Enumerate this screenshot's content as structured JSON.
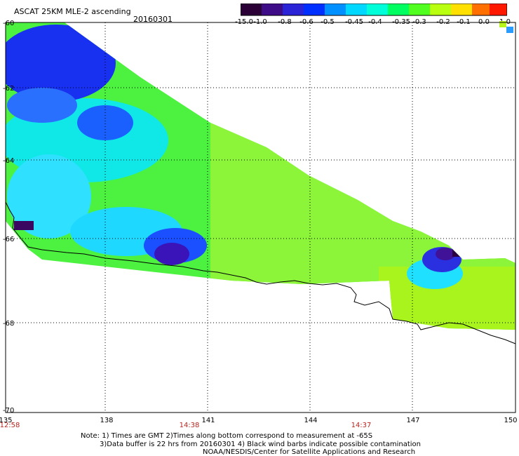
{
  "header": {
    "title": "ASCAT 25KM MLE-2 ascending",
    "date": "20160301"
  },
  "colorbar": {
    "labels": [
      "-15.0",
      "-1.0",
      "-0.8",
      "-0.6",
      "-0.5",
      "-0.45",
      "-0.4",
      "-0.35",
      "-0.3",
      "-0.2",
      "-0.1",
      "0.0",
      "1.0"
    ],
    "colors": [
      "#2b0033",
      "#4a0a7a",
      "#3a22c8",
      "#0018ff",
      "#0070ff",
      "#00b8ff",
      "#00f0ff",
      "#00ff90",
      "#40ff30",
      "#a8ff20",
      "#ffe800",
      "#ff8000",
      "#ff0000"
    ]
  },
  "map": {
    "latitudes": [
      "-60",
      "-62",
      "-64",
      "-66",
      "-68",
      "-70"
    ],
    "longitudes": [
      "135",
      "138",
      "141",
      "144",
      "147",
      "150"
    ],
    "times": [
      "12:58",
      "14:38",
      "14:37"
    ]
  },
  "notes": {
    "line1": "Note: 1) Times are GMT 2)Times along bottom correspond to measurement at -65S",
    "line2": "3)Data buffer is 22 hrs from 20160301 4) Black wind barbs indicate possible contamination",
    "line3": "NOAA/NESDIS/Center for Satellite Applications and Research"
  }
}
